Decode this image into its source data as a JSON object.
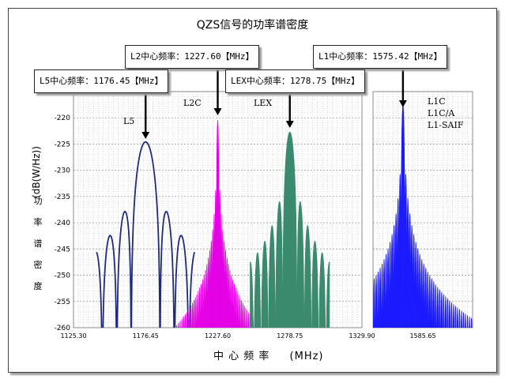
{
  "chart_data": {
    "type": "line",
    "title": "QZS信号的功率谱密度",
    "ylabel_unit": "(dB(W/Hz))",
    "ylabel_text": [
      "功",
      "率",
      "谱",
      "密",
      "度"
    ],
    "xlabel_text": "中 心 频 率",
    "xlabel_unit": "(MHz)",
    "ylim": [
      -260,
      -215
    ],
    "yticks": [
      -215,
      -220,
      -225,
      -230,
      -235,
      -240,
      -245,
      -250,
      -255,
      -260
    ],
    "ytick_labels": [
      "-215",
      "-220",
      "-225",
      "-230",
      "-235",
      "-240",
      "-245",
      "-250",
      "-255",
      "-260"
    ],
    "left_panel": {
      "xlim": [
        1125.3,
        1329.9
      ],
      "xticks": [
        1125.3,
        1176.45,
        1227.6,
        1278.75,
        1329.9
      ],
      "xtick_labels": [
        "1125.30",
        "1176.45",
        "1227.60",
        "1278.75",
        "1329.90"
      ]
    },
    "right_panel": {
      "xlim": [
        1560.0,
        1611.3
      ],
      "xticks": [
        1585.65
      ],
      "xtick_labels": [
        "1585.65"
      ]
    },
    "series": [
      {
        "name": "L5",
        "center": 1176.45,
        "peak": -224.6,
        "chip_rate_mhz": 10.23,
        "color": "#1f2a7a",
        "fill": false
      },
      {
        "name": "L2C",
        "center": 1227.6,
        "peak": -220.5,
        "chip_rate_mhz": 1.023,
        "color": "#e600e6",
        "fill": true
      },
      {
        "name": "LEX",
        "center": 1278.75,
        "peak": -222.7,
        "chip_rate_mhz": 5.115,
        "color": "#3e8c70",
        "fill": true
      },
      {
        "name": "L1",
        "center": 1575.42,
        "peak": -217.5,
        "chip_rate_mhz": 1.023,
        "color": "#1a1aff",
        "fill": true
      }
    ],
    "signal_labels": {
      "l5": "L5",
      "l2c": "L2C",
      "lex": "LEX",
      "l1": [
        "L1C",
        "L1C/A",
        "L1-SAIF"
      ]
    },
    "callouts": {
      "l2": "L2中心频率：1227.60【MHz】",
      "l1": "L1中心频率：1575.42【MHz】",
      "l5": "L5中心频率：1176.45【MHz】",
      "lex": "LEX中心频率：1278.75【MHz】"
    }
  }
}
